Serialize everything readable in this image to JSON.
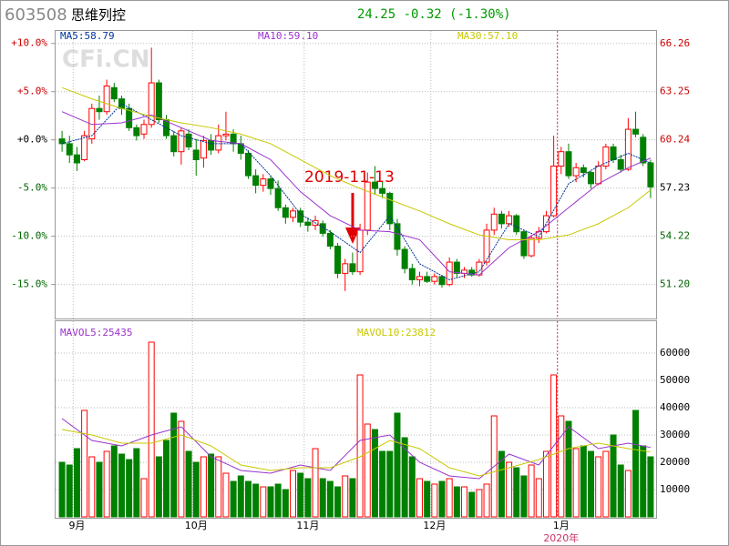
{
  "header": {
    "code": "603508",
    "name": "思维列控",
    "quote": "24.25 -0.32 (-1.30%)",
    "watermark": "CFi.CN"
  },
  "chart_data": [
    {
      "type": "candlestick",
      "annotation": "2019-11-13",
      "up_color": "#ff0000",
      "down_color": "#008000",
      "ylim": [
        49.08,
        67.1
      ],
      "yticks": [
        66.26,
        63.25,
        60.24,
        57.23,
        54.22,
        {
          "value": 51.2,
          "label": "51.20"
        }
      ],
      "y2lim": [
        -18.53,
        11.39
      ],
      "y2ticks": [
        {
          "value": 10,
          "label": "+10.0%"
        },
        {
          "value": 5,
          "label": "+5.0%"
        },
        {
          "value": 0,
          "label": "+0.0%"
        },
        {
          "value": -5,
          "label": "-5.0%"
        },
        {
          "value": -10,
          "label": "-10.0%"
        },
        {
          "value": -15,
          "label": "-15.0%"
        }
      ],
      "grid": true,
      "ohlc": [
        [
          60.3,
          60.8,
          59.5,
          60.0
        ],
        [
          60.0,
          60.5,
          58.8,
          59.3
        ],
        [
          59.3,
          59.8,
          58.3,
          58.8
        ],
        [
          59.0,
          60.8,
          58.9,
          60.5
        ],
        [
          60.3,
          62.5,
          60.0,
          62.2
        ],
        [
          62.2,
          63.0,
          61.5,
          62.0
        ],
        [
          62.0,
          64.0,
          61.8,
          63.6
        ],
        [
          63.5,
          63.8,
          62.6,
          62.8
        ],
        [
          62.8,
          63.0,
          61.8,
          62.2
        ],
        [
          62.2,
          62.5,
          60.8,
          61.0
        ],
        [
          61.0,
          61.2,
          60.2,
          60.5
        ],
        [
          60.6,
          61.5,
          60.3,
          61.2
        ],
        [
          61.2,
          66.0,
          61.0,
          63.8
        ],
        [
          63.8,
          64.0,
          61.3,
          61.5
        ],
        [
          61.5,
          61.8,
          60.3,
          60.5
        ],
        [
          60.5,
          60.8,
          59.2,
          59.5
        ],
        [
          59.5,
          61.0,
          58.7,
          60.8
        ],
        [
          60.6,
          60.9,
          59.6,
          59.8
        ],
        [
          59.6,
          60.3,
          58.0,
          59.0
        ],
        [
          59.1,
          60.5,
          58.5,
          60.2
        ],
        [
          60.2,
          60.6,
          59.3,
          59.6
        ],
        [
          59.6,
          61.2,
          59.4,
          60.5
        ],
        [
          60.5,
          62.0,
          60.2,
          60.6
        ],
        [
          60.6,
          60.9,
          59.5,
          60.0
        ],
        [
          60.0,
          60.5,
          59.0,
          59.4
        ],
        [
          59.4,
          59.6,
          57.8,
          58.0
        ],
        [
          58.0,
          58.4,
          56.9,
          57.4
        ],
        [
          57.4,
          58.1,
          57.0,
          57.8
        ],
        [
          57.8,
          58.0,
          56.8,
          57.2
        ],
        [
          57.2,
          57.7,
          55.8,
          56.0
        ],
        [
          56.0,
          56.2,
          55.0,
          55.4
        ],
        [
          55.4,
          56.0,
          55.1,
          55.8
        ],
        [
          55.8,
          56.0,
          54.8,
          55.1
        ],
        [
          55.1,
          55.4,
          54.5,
          54.9
        ],
        [
          54.9,
          55.5,
          54.6,
          55.2
        ],
        [
          55.0,
          55.2,
          54.2,
          54.4
        ],
        [
          54.4,
          54.6,
          53.4,
          53.6
        ],
        [
          53.6,
          53.8,
          51.6,
          51.9
        ],
        [
          51.9,
          52.8,
          50.8,
          52.5
        ],
        [
          52.5,
          53.2,
          51.8,
          52.0
        ],
        [
          52.0,
          55.0,
          51.8,
          54.6
        ],
        [
          54.6,
          58.2,
          54.3,
          57.6
        ],
        [
          57.6,
          58.6,
          56.8,
          57.2
        ],
        [
          57.2,
          57.6,
          56.6,
          56.9
        ],
        [
          56.9,
          57.0,
          54.6,
          55.0
        ],
        [
          55.0,
          55.3,
          53.0,
          53.4
        ],
        [
          53.4,
          53.6,
          51.9,
          52.2
        ],
        [
          52.2,
          52.5,
          51.2,
          51.5
        ],
        [
          51.5,
          52.0,
          51.1,
          51.7
        ],
        [
          51.7,
          52.0,
          51.3,
          51.4
        ],
        [
          51.4,
          51.9,
          51.2,
          51.7
        ],
        [
          51.7,
          51.8,
          51.0,
          51.2
        ],
        [
          51.2,
          52.9,
          51.1,
          52.6
        ],
        [
          52.6,
          52.8,
          51.6,
          51.9
        ],
        [
          51.9,
          52.3,
          51.6,
          52.1
        ],
        [
          52.1,
          52.3,
          51.7,
          51.8
        ],
        [
          51.8,
          52.8,
          51.7,
          52.6
        ],
        [
          52.6,
          55.0,
          52.4,
          54.6
        ],
        [
          54.6,
          56.0,
          54.3,
          55.6
        ],
        [
          55.6,
          55.8,
          54.7,
          55.0
        ],
        [
          55.0,
          55.8,
          54.8,
          55.5
        ],
        [
          55.5,
          55.6,
          54.3,
          54.5
        ],
        [
          54.5,
          54.6,
          52.8,
          53.0
        ],
        [
          53.0,
          54.3,
          52.9,
          54.1
        ],
        [
          54.1,
          54.8,
          53.8,
          54.5
        ],
        [
          54.5,
          55.8,
          54.4,
          55.5
        ],
        [
          55.5,
          60.5,
          55.4,
          58.6
        ],
        [
          58.6,
          59.8,
          58.1,
          59.5
        ],
        [
          59.5,
          60.0,
          57.8,
          58.0
        ],
        [
          58.0,
          58.8,
          57.6,
          58.5
        ],
        [
          58.5,
          58.7,
          57.9,
          58.2
        ],
        [
          58.2,
          58.3,
          57.2,
          57.5
        ],
        [
          57.5,
          58.9,
          57.4,
          58.6
        ],
        [
          58.6,
          60.0,
          58.4,
          59.8
        ],
        [
          59.8,
          60.0,
          58.8,
          59.0
        ],
        [
          59.0,
          59.3,
          58.2,
          58.4
        ],
        [
          58.4,
          61.6,
          58.3,
          60.9
        ],
        [
          60.9,
          62.0,
          60.4,
          60.6
        ],
        [
          60.4,
          60.6,
          58.6,
          58.8
        ],
        [
          58.8,
          59.0,
          56.6,
          57.3
        ]
      ],
      "series": [
        {
          "name": "MA5:58.79",
          "color": "#003399",
          "x": [
            0,
            4,
            8,
            12,
            16,
            20,
            24,
            28,
            32,
            36,
            40,
            44,
            48,
            52,
            56,
            60,
            64,
            68,
            72,
            76,
            79
          ],
          "values": [
            60.0,
            60.5,
            62.5,
            61.5,
            60.5,
            60,
            60,
            58,
            55.6,
            54.5,
            53.2,
            55.5,
            52.5,
            51.5,
            52,
            55,
            54.2,
            57.5,
            58.6,
            59.4,
            58.8
          ]
        },
        {
          "name": "MA10:59.10",
          "color": "#9933cc",
          "x": [
            0,
            4,
            8,
            12,
            16,
            20,
            24,
            28,
            32,
            36,
            40,
            44,
            48,
            52,
            56,
            60,
            64,
            68,
            72,
            76,
            79
          ],
          "values": [
            62.0,
            61.2,
            61.3,
            61.8,
            61.0,
            60.2,
            60.0,
            59,
            57,
            55.5,
            54.6,
            54.5,
            54,
            52,
            51.8,
            53.5,
            54.5,
            56,
            57.5,
            58.5,
            59.1
          ]
        },
        {
          "name": "MA30:57.10",
          "color": "#c8c800",
          "x": [
            0,
            4,
            8,
            12,
            16,
            20,
            24,
            28,
            32,
            36,
            40,
            44,
            48,
            52,
            56,
            60,
            64,
            68,
            72,
            76,
            79
          ],
          "values": [
            63.5,
            62.8,
            62.2,
            61.7,
            61.3,
            61.0,
            60.6,
            60.0,
            59.0,
            58.0,
            57.2,
            56.5,
            55.8,
            55.0,
            54.3,
            54.0,
            54.0,
            54.3,
            55.0,
            56.0,
            57.1
          ]
        }
      ]
    },
    {
      "type": "bar",
      "x_sublabel": "2020年",
      "ylim": [
        0,
        72000
      ],
      "yticks": [
        10000,
        20000,
        30000,
        40000,
        50000,
        60000
      ],
      "categories": [
        null,
        null,
        "9月",
        null,
        null,
        null,
        null,
        null,
        null,
        null,
        null,
        null,
        null,
        null,
        null,
        null,
        null,
        null,
        "10月",
        null,
        null,
        null,
        null,
        null,
        null,
        null,
        null,
        null,
        null,
        null,
        null,
        null,
        null,
        "11月",
        null,
        null,
        null,
        null,
        null,
        null,
        null,
        null,
        null,
        null,
        null,
        null,
        null,
        null,
        null,
        null,
        "12月",
        null,
        null,
        null,
        null,
        null,
        null,
        null,
        null,
        null,
        null,
        null,
        null,
        null,
        null,
        null,
        null,
        "1月",
        null,
        null,
        null,
        null,
        null,
        null,
        null,
        null,
        null,
        null,
        null,
        null
      ],
      "values": [
        20000,
        19000,
        25000,
        39000,
        22000,
        20000,
        24000,
        26000,
        23000,
        21000,
        25000,
        14000,
        64000,
        22000,
        28000,
        38000,
        35000,
        24000,
        20000,
        22000,
        23000,
        22000,
        16000,
        13000,
        15000,
        13000,
        12000,
        11000,
        11000,
        12000,
        10000,
        17000,
        16000,
        14000,
        25000,
        14000,
        13000,
        11000,
        15000,
        14000,
        52000,
        34000,
        32000,
        24000,
        24000,
        38000,
        29000,
        22000,
        14000,
        13000,
        12000,
        13000,
        14000,
        11000,
        11000,
        9000,
        10000,
        12000,
        37000,
        24000,
        20000,
        18000,
        15000,
        19000,
        14000,
        24000,
        52000,
        37000,
        35000,
        25000,
        26000,
        24000,
        22000,
        24000,
        30000,
        19000,
        17000,
        39000,
        26000,
        22000
      ],
      "series": [
        {
          "name": "MAVOL5:25435",
          "color": "#9933cc",
          "x": [
            0,
            4,
            8,
            12,
            16,
            20,
            24,
            28,
            32,
            36,
            40,
            44,
            48,
            52,
            56,
            60,
            64,
            68,
            72,
            76,
            79
          ],
          "values": [
            36000,
            28000,
            26000,
            30000,
            33000,
            22000,
            17000,
            16000,
            19000,
            17000,
            28000,
            30000,
            20000,
            15000,
            14000,
            23000,
            19000,
            33000,
            25000,
            27000,
            25435
          ]
        },
        {
          "name": "MAVOL10:23812",
          "color": "#c8c800",
          "x": [
            0,
            4,
            8,
            12,
            16,
            20,
            24,
            28,
            32,
            36,
            40,
            44,
            48,
            52,
            56,
            60,
            64,
            68,
            72,
            76,
            79
          ],
          "values": [
            32000,
            30000,
            27000,
            27000,
            30000,
            26000,
            19000,
            17000,
            18000,
            18000,
            22000,
            28000,
            25000,
            18000,
            15000,
            18000,
            21000,
            25000,
            27000,
            25000,
            23812
          ]
        }
      ]
    }
  ]
}
